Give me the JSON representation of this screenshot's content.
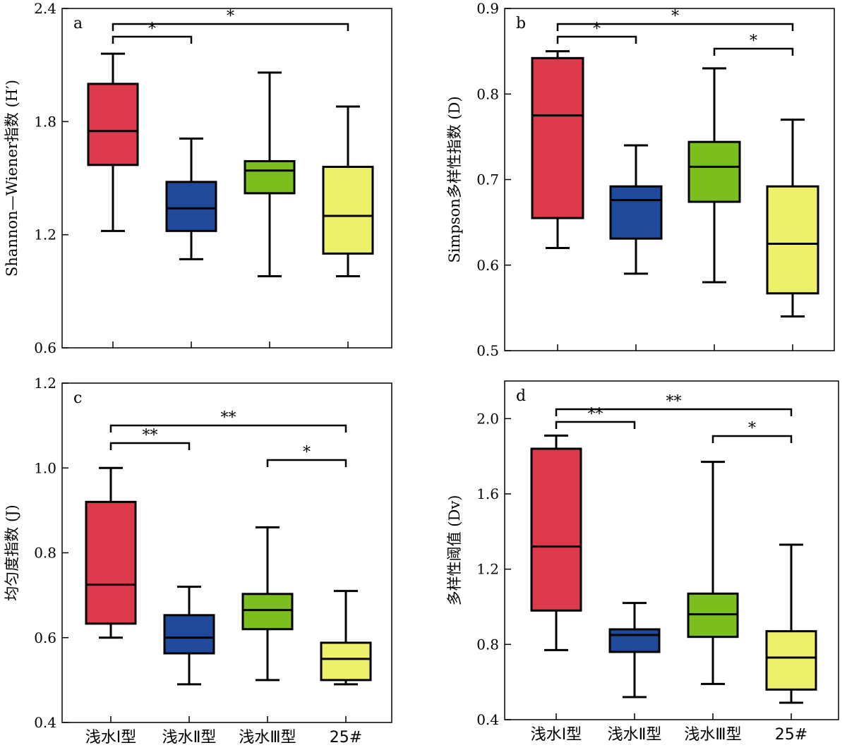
{
  "colors": {
    "type1": "#dc3a4a",
    "type2": "#1f4a9c",
    "type3": "#7bbf1f",
    "site25": "#eef06a",
    "stroke": "#000000"
  },
  "chart_data": [
    {
      "id": "a",
      "type": "box",
      "panel_label": "a",
      "ylabel": "Shannon—Wiener指数 (H′)",
      "ylim": [
        0.6,
        2.4
      ],
      "yticks": [
        0.6,
        1.2,
        1.8,
        2.4
      ],
      "ytick_labels": [
        "0.6",
        "1.2",
        "1.8",
        "2.4"
      ],
      "categories": [
        "浅水Ⅰ型",
        "浅水Ⅱ型",
        "浅水Ⅲ型",
        "25#"
      ],
      "show_category_labels": false,
      "boxes": [
        {
          "min": 1.22,
          "q1": 1.57,
          "median": 1.75,
          "q3": 2.0,
          "max": 2.16,
          "color": "#dc3a4a"
        },
        {
          "min": 1.07,
          "q1": 1.22,
          "median": 1.34,
          "q3": 1.48,
          "max": 1.71,
          "color": "#1f4a9c"
        },
        {
          "min": 0.98,
          "q1": 1.42,
          "median": 1.54,
          "q3": 1.59,
          "max": 2.06,
          "color": "#7bbf1f"
        },
        {
          "min": 0.98,
          "q1": 1.1,
          "median": 1.3,
          "q3": 1.56,
          "max": 1.88,
          "color": "#eef06a"
        }
      ],
      "significance": [
        {
          "from": 0,
          "to": 3,
          "label": "*",
          "level": 2
        },
        {
          "from": 0,
          "to": 1,
          "label": "*",
          "level": 1
        }
      ]
    },
    {
      "id": "b",
      "type": "box",
      "panel_label": "b",
      "ylabel": "Simpson多样性指数 (D)",
      "ylim": [
        0.5,
        0.9
      ],
      "yticks": [
        0.5,
        0.6,
        0.7,
        0.8,
        0.9
      ],
      "ytick_labels": [
        "0.5",
        "0.6",
        "0.7",
        "0.8",
        "0.9"
      ],
      "categories": [
        "浅水Ⅰ型",
        "浅水Ⅱ型",
        "浅水Ⅲ型",
        "25#"
      ],
      "show_category_labels": false,
      "boxes": [
        {
          "min": 0.62,
          "q1": 0.655,
          "median": 0.775,
          "q3": 0.842,
          "max": 0.85,
          "color": "#dc3a4a"
        },
        {
          "min": 0.59,
          "q1": 0.631,
          "median": 0.676,
          "q3": 0.692,
          "max": 0.74,
          "color": "#1f4a9c"
        },
        {
          "min": 0.58,
          "q1": 0.674,
          "median": 0.715,
          "q3": 0.744,
          "max": 0.83,
          "color": "#7bbf1f"
        },
        {
          "min": 0.54,
          "q1": 0.567,
          "median": 0.625,
          "q3": 0.692,
          "max": 0.77,
          "color": "#eef06a"
        }
      ],
      "significance": [
        {
          "from": 0,
          "to": 3,
          "label": "*",
          "level": 2
        },
        {
          "from": 0,
          "to": 1,
          "label": "*",
          "level": 1
        },
        {
          "from": 2,
          "to": 3,
          "label": "*",
          "level": 0
        }
      ]
    },
    {
      "id": "c",
      "type": "box",
      "panel_label": "c",
      "ylabel": "均匀度指数 (J)",
      "ylim": [
        0.4,
        1.2
      ],
      "yticks": [
        0.4,
        0.6,
        0.8,
        1.0,
        1.2
      ],
      "ytick_labels": [
        "0.4",
        "0.6",
        "0.8",
        "1.0",
        "1.2"
      ],
      "categories": [
        "浅水Ⅰ型",
        "浅水Ⅱ型",
        "浅水Ⅲ型",
        "25#"
      ],
      "show_category_labels": true,
      "boxes": [
        {
          "min": 0.6,
          "q1": 0.633,
          "median": 0.725,
          "q3": 0.92,
          "max": 1.0,
          "color": "#dc3a4a"
        },
        {
          "min": 0.49,
          "q1": 0.563,
          "median": 0.6,
          "q3": 0.653,
          "max": 0.72,
          "color": "#1f4a9c"
        },
        {
          "min": 0.5,
          "q1": 0.62,
          "median": 0.665,
          "q3": 0.703,
          "max": 0.86,
          "color": "#7bbf1f"
        },
        {
          "min": 0.49,
          "q1": 0.5,
          "median": 0.55,
          "q3": 0.588,
          "max": 0.71,
          "color": "#eef06a"
        }
      ],
      "significance": [
        {
          "from": 0,
          "to": 3,
          "label": "**",
          "level": 2
        },
        {
          "from": 0,
          "to": 1,
          "label": "**",
          "level": 1
        },
        {
          "from": 2,
          "to": 3,
          "label": "*",
          "level": 0
        }
      ]
    },
    {
      "id": "d",
      "type": "box",
      "panel_label": "d",
      "ylabel": "多样性阈值 (Dv)",
      "ylim": [
        0.4,
        2.2
      ],
      "yticks": [
        0.4,
        0.8,
        1.2,
        1.6,
        2.0
      ],
      "ytick_labels": [
        "0.4",
        "0.8",
        "1.2",
        "1.6",
        "2.0"
      ],
      "categories": [
        "浅水Ⅰ型",
        "浅水Ⅱ型",
        "浅水Ⅲ型",
        "25#"
      ],
      "show_category_labels": true,
      "boxes": [
        {
          "min": 0.77,
          "q1": 0.98,
          "median": 1.32,
          "q3": 1.84,
          "max": 1.91,
          "color": "#dc3a4a"
        },
        {
          "min": 0.52,
          "q1": 0.76,
          "median": 0.85,
          "q3": 0.88,
          "max": 1.02,
          "color": "#1f4a9c"
        },
        {
          "min": 0.59,
          "q1": 0.84,
          "median": 0.96,
          "q3": 1.07,
          "max": 1.77,
          "color": "#7bbf1f"
        },
        {
          "min": 0.49,
          "q1": 0.56,
          "median": 0.73,
          "q3": 0.87,
          "max": 1.33,
          "color": "#eef06a"
        }
      ],
      "significance": [
        {
          "from": 0,
          "to": 3,
          "label": "**",
          "level": 2
        },
        {
          "from": 0,
          "to": 1,
          "label": "**",
          "level": 1
        },
        {
          "from": 2,
          "to": 3,
          "label": "*",
          "level": 0
        }
      ]
    }
  ]
}
